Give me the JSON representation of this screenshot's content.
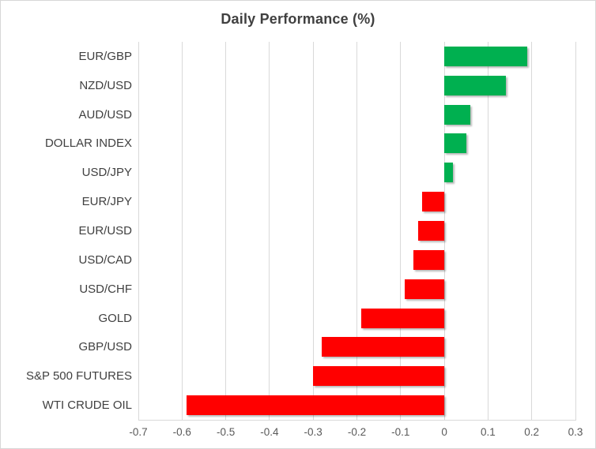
{
  "chart_data": {
    "type": "bar",
    "orientation": "horizontal",
    "title": "Daily Performance (%)",
    "categories": [
      "EUR/GBP",
      "NZD/USD",
      "AUD/USD",
      "DOLLAR INDEX",
      "USD/JPY",
      "EUR/JPY",
      "EUR/USD",
      "USD/CAD",
      "USD/CHF",
      "GOLD",
      "GBP/USD",
      "S&P 500 FUTURES",
      "WTI CRUDE OIL"
    ],
    "values": [
      0.19,
      0.14,
      0.06,
      0.05,
      0.02,
      -0.05,
      -0.06,
      -0.07,
      -0.09,
      -0.19,
      -0.28,
      -0.3,
      -0.59
    ],
    "xlabel": "",
    "ylabel": "",
    "xlim": [
      -0.7,
      0.3
    ],
    "x_ticks": [
      "-0.7",
      "-0.6",
      "-0.5",
      "-0.4",
      "-0.3",
      "-0.2",
      "-0.1",
      "0",
      "0.1",
      "0.2",
      "0.3"
    ],
    "x_tick_values": [
      -0.7,
      -0.6,
      -0.5,
      -0.4,
      -0.3,
      -0.2,
      -0.1,
      0,
      0.1,
      0.2,
      0.3
    ],
    "grid": "vertical",
    "legend": "none",
    "colors": {
      "positive": "#00b050",
      "negative": "#ff0000",
      "gridline": "#d9d9d9",
      "title_text": "#404040",
      "category_text": "#404040",
      "tick_text": "#595959"
    }
  }
}
